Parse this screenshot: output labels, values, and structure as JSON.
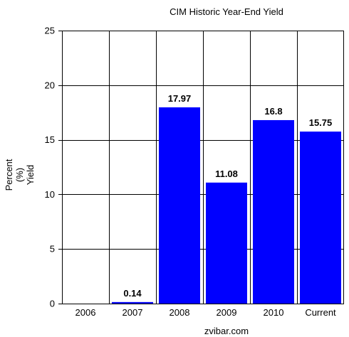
{
  "chart_data": {
    "type": "bar",
    "title": "CIM Historic Year-End Yield",
    "ylabel_lines": [
      "Percent",
      "(%)",
      "Yield"
    ],
    "xlabel": "",
    "categories": [
      "2006",
      "2007",
      "2008",
      "2009",
      "2010",
      "Current"
    ],
    "values": [
      0,
      0.14,
      17.97,
      11.08,
      16.8,
      15.75
    ],
    "value_labels": [
      "",
      "0.14",
      "17.97",
      "11.08",
      "16.8",
      "15.75"
    ],
    "ylim": [
      0,
      25
    ],
    "yticks": [
      0,
      5,
      10,
      15,
      20,
      25
    ],
    "grid": true,
    "bar_color": "#0000ff",
    "source": "zvibar.com"
  }
}
